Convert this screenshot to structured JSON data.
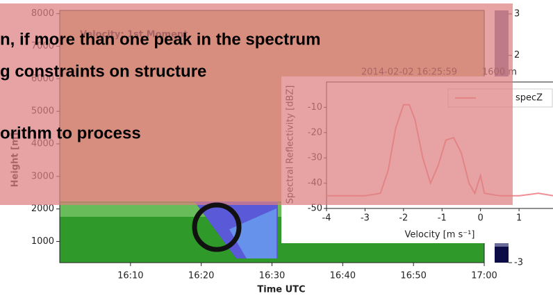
{
  "slide": {
    "lines": [
      "n, if more than one peak in the spectrum",
      "g constraints on structure",
      "orithm to process"
    ]
  },
  "chart_data": [
    {
      "type": "heatmap",
      "title": "Velocity: 1st Moment",
      "xlabel": "Time UTC",
      "ylabel": "Height [m]",
      "xlim": [
        "16:00",
        "17:00"
      ],
      "xticks": [
        "16:10",
        "16:20",
        "16:30",
        "16:40",
        "16:50",
        "17:00"
      ],
      "ylim": [
        350,
        8100
      ],
      "yticks": [
        1000,
        2000,
        3000,
        4000,
        5000,
        6000,
        7000,
        8000
      ],
      "colorbar": {
        "lim": [
          -3,
          3
        ],
        "ticks": [
          -3,
          2,
          3
        ]
      },
      "annotation": [
        "2014-02-02 16:25:59",
        "1600 m"
      ]
    },
    {
      "type": "line",
      "xlabel": "Velocity [m s⁻¹]",
      "ylabel": "Spectral Reflectivity [dBZ]",
      "x": [
        -4,
        -3,
        -2.6,
        -2.4,
        -2.2,
        -2,
        -1.85,
        -1.7,
        -1.5,
        -1.3,
        -1.1,
        -0.9,
        -0.7,
        -0.5,
        -0.3,
        -0.15,
        0,
        0.1,
        0.5,
        1,
        1.5,
        1.9
      ],
      "series": [
        {
          "name": "specZ",
          "color": "#f08c94",
          "values": [
            -45,
            -45,
            -44,
            -35,
            -18,
            -9,
            -9,
            -15,
            -30,
            -40,
            -33,
            -23,
            -22,
            -28,
            -40,
            -44,
            -37,
            -44,
            -45,
            -45,
            -44,
            -45
          ]
        }
      ],
      "xlim": [
        -4,
        1.9
      ],
      "xticks": [
        -4,
        -3,
        -2,
        -1,
        0,
        1
      ],
      "ylim": [
        -50,
        0
      ],
      "yticks": [
        -50,
        -40,
        -30,
        -20,
        -10
      ]
    }
  ]
}
